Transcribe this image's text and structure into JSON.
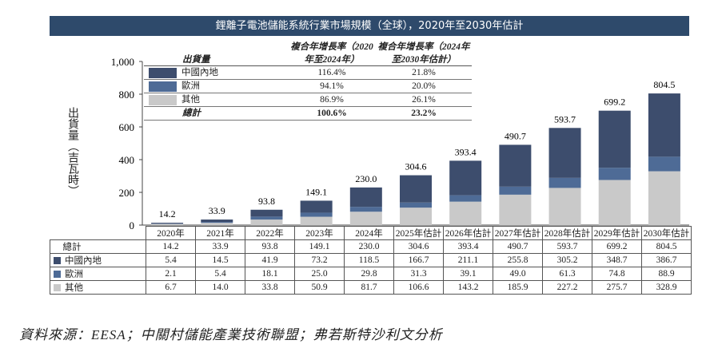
{
  "title": "鋰離子電池儲能系統行業市場規模（全球），2020年至2030年估計",
  "colors": {
    "china": "#3d4d6d",
    "europe": "#4e6b96",
    "other": "#c9c9c9"
  },
  "legend": {
    "header_label": "出貨量",
    "col1": "複合年增長率（2020年至2024年）",
    "col2": "複合年增長率（2024年至2030年估計）",
    "rows": [
      {
        "name": "中國內地",
        "c1": "116.4%",
        "c2": "21.8%"
      },
      {
        "name": "歐洲",
        "c1": "94.1%",
        "c2": "20.0%"
      },
      {
        "name": "其他",
        "c1": "86.9%",
        "c2": "26.1%"
      },
      {
        "name": "總計",
        "c1": "100.6%",
        "c2": "23.2%"
      }
    ]
  },
  "source": "資料來源：EESA；中關村儲能產業技術聯盟；弗若斯特沙利文分析",
  "chart_data": {
    "type": "bar",
    "stacked": true,
    "title": "鋰離子電池儲能系統行業市場規模（全球），2020年至2030年估計",
    "ylabel": "出貨量（吉瓦時）",
    "ylim": [
      0,
      1000
    ],
    "yticks": [
      "0",
      "200",
      "400",
      "600",
      "800",
      "1,000"
    ],
    "categories": [
      "2020年",
      "2021年",
      "2022年",
      "2023年",
      "2024年",
      "2025年估計",
      "2026年估計",
      "2027年估計",
      "2028年估計",
      "2029年估計",
      "2030年估計"
    ],
    "totals": [
      "14.2",
      "33.9",
      "93.8",
      "149.1",
      "230.0",
      "304.6",
      "393.4",
      "490.7",
      "593.7",
      "699.2",
      "804.5"
    ],
    "total_label": "總計",
    "series": [
      {
        "name": "中國內地",
        "values": [
          5.4,
          14.5,
          41.9,
          73.2,
          118.5,
          166.7,
          211.1,
          255.8,
          305.2,
          348.7,
          386.7
        ]
      },
      {
        "name": "歐洲",
        "values": [
          2.1,
          5.4,
          18.1,
          25.0,
          29.8,
          31.3,
          39.1,
          49.0,
          61.3,
          74.8,
          88.9
        ]
      },
      {
        "name": "其他",
        "values": [
          6.7,
          14.0,
          33.8,
          50.9,
          81.7,
          106.6,
          143.2,
          185.9,
          227.2,
          275.7,
          328.9
        ]
      }
    ]
  }
}
